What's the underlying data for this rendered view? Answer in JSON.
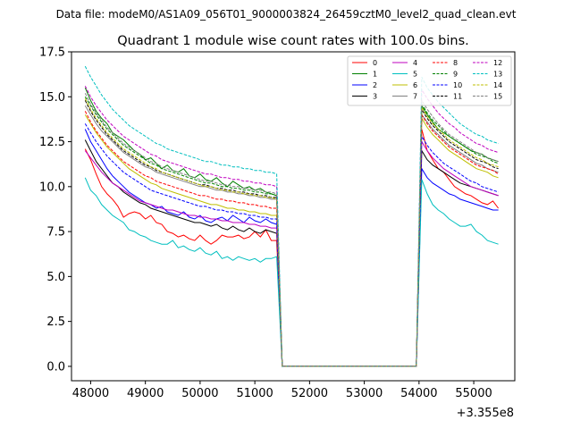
{
  "chart_data": {
    "type": "line",
    "suptitle": "Data file: modeM0/AS1A09_056T01_9000003824_26459cztM0_level2_quad_clean.evt",
    "title": "Quadrant 1 module wise count rates with 100.0s bins.",
    "xlabel": "",
    "ylabel": "",
    "x_offset_label": "+3.355e8",
    "xlim": [
      47650,
      55750
    ],
    "ylim": [
      -0.8,
      17.5
    ],
    "x_ticks": [
      48000,
      49000,
      50000,
      51000,
      52000,
      53000,
      54000,
      55000
    ],
    "x_tick_labels": [
      "48000",
      "49000",
      "50000",
      "51000",
      "52000",
      "53000",
      "54000",
      "55000"
    ],
    "y_ticks": [
      0.0,
      2.5,
      5.0,
      7.5,
      10.0,
      12.5,
      15.0,
      17.5
    ],
    "y_tick_labels": [
      "0.0",
      "2.5",
      "5.0",
      "7.5",
      "10.0",
      "12.5",
      "15.0",
      "17.5"
    ],
    "bin_width_s": 100,
    "segment1_start": 47900,
    "segment2_start": 54050,
    "gap_end": 53950,
    "zero_level": 0.0,
    "legend_position": "upper-right",
    "series": [
      {
        "name": "0",
        "color": "#ff0000",
        "dash": "solid",
        "seg1": [
          12.1,
          11.5,
          10.7,
          10.0,
          9.6,
          9.3,
          8.9,
          8.3,
          8.5,
          8.6,
          8.5,
          8.2,
          8.4,
          8.0,
          7.9,
          7.5,
          7.4,
          7.2,
          7.3,
          7.1,
          7.0,
          7.3,
          7.0,
          6.8,
          7.0,
          7.3,
          7.2,
          7.2,
          7.3,
          7.1,
          7.2,
          7.5,
          7.2,
          7.6,
          7.0,
          7.0
        ],
        "seg2": [
          13.2,
          12.0,
          11.5,
          11.0,
          10.8,
          10.4,
          10.0,
          9.8,
          9.6,
          9.5,
          9.3,
          9.1,
          9.0,
          9.2,
          8.8
        ]
      },
      {
        "name": "1",
        "color": "#008000",
        "dash": "solid",
        "seg1": [
          15.5,
          14.8,
          14.2,
          13.8,
          13.5,
          13.0,
          12.8,
          12.6,
          12.3,
          12.0,
          11.8,
          11.5,
          11.6,
          11.3,
          11.0,
          11.2,
          10.9,
          10.8,
          11.0,
          10.6,
          10.5,
          10.7,
          10.4,
          10.3,
          10.5,
          10.2,
          10.0,
          10.3,
          10.1,
          9.9,
          10.0,
          9.8,
          9.9,
          9.7,
          9.6,
          9.5
        ],
        "seg2": [
          14.5,
          14.0,
          13.6,
          13.2,
          13.0,
          12.8,
          12.6,
          12.4,
          12.2,
          12.0,
          11.9,
          11.8,
          11.6,
          11.5,
          11.4
        ]
      },
      {
        "name": "2",
        "color": "#0000ff",
        "dash": "solid",
        "seg1": [
          13.2,
          12.5,
          12.0,
          11.5,
          11.0,
          10.6,
          10.3,
          10.0,
          9.7,
          9.5,
          9.3,
          9.1,
          9.0,
          8.8,
          8.9,
          8.6,
          8.5,
          8.4,
          8.6,
          8.3,
          8.2,
          8.4,
          8.1,
          8.0,
          8.2,
          8.3,
          8.1,
          8.4,
          8.2,
          8.0,
          8.3,
          8.1,
          8.0,
          8.2,
          8.0,
          7.9
        ],
        "seg2": [
          11.0,
          10.5,
          10.2,
          10.0,
          9.8,
          9.6,
          9.5,
          9.3,
          9.2,
          9.1,
          9.0,
          8.9,
          8.8,
          8.7,
          8.7
        ]
      },
      {
        "name": "3",
        "color": "#000000",
        "dash": "solid",
        "seg1": [
          12.6,
          12.0,
          11.4,
          11.0,
          10.6,
          10.2,
          10.0,
          9.7,
          9.5,
          9.3,
          9.1,
          9.0,
          8.8,
          8.7,
          8.6,
          8.5,
          8.4,
          8.3,
          8.2,
          8.1,
          8.0,
          8.0,
          7.9,
          7.8,
          7.9,
          7.7,
          7.6,
          7.8,
          7.6,
          7.5,
          7.7,
          7.5,
          7.4,
          7.6,
          7.5,
          7.4
        ],
        "seg2": [
          12.0,
          11.5,
          11.2,
          11.0,
          10.8,
          10.6,
          10.4,
          10.2,
          10.1,
          10.0,
          9.9,
          9.8,
          9.7,
          9.6,
          9.5
        ]
      },
      {
        "name": "4",
        "color": "#bf00bf",
        "dash": "solid",
        "seg1": [
          12.0,
          11.6,
          11.2,
          10.8,
          10.5,
          10.2,
          10.0,
          9.8,
          9.6,
          9.4,
          9.2,
          9.1,
          9.0,
          8.9,
          8.8,
          8.7,
          8.7,
          8.6,
          8.5,
          8.4,
          8.4,
          8.3,
          8.3,
          8.2,
          8.2,
          8.1,
          8.1,
          8.0,
          8.0,
          8.0,
          7.9,
          7.9,
          7.8,
          7.8,
          7.7,
          7.7
        ],
        "seg2": [
          12.5,
          12.0,
          11.6,
          11.3,
          11.0,
          10.8,
          10.6,
          10.4,
          10.2,
          10.0,
          9.9,
          9.8,
          9.7,
          9.6,
          9.5
        ]
      },
      {
        "name": "5",
        "color": "#00bfbf",
        "dash": "solid",
        "seg1": [
          10.5,
          9.8,
          9.5,
          9.0,
          8.7,
          8.4,
          8.2,
          8.0,
          7.6,
          7.5,
          7.3,
          7.2,
          7.0,
          6.9,
          6.8,
          6.8,
          7.0,
          6.6,
          6.7,
          6.5,
          6.4,
          6.6,
          6.3,
          6.2,
          6.4,
          6.0,
          6.1,
          5.9,
          6.1,
          6.0,
          5.9,
          6.0,
          5.8,
          6.0,
          6.0,
          6.1
        ],
        "seg2": [
          10.4,
          9.6,
          9.0,
          8.7,
          8.5,
          8.2,
          8.0,
          7.8,
          7.8,
          7.9,
          7.5,
          7.3,
          7.0,
          6.9,
          6.8
        ]
      },
      {
        "name": "6",
        "color": "#bfbf00",
        "dash": "solid",
        "seg1": [
          14.0,
          13.5,
          13.0,
          12.6,
          12.2,
          11.9,
          11.6,
          11.3,
          11.0,
          10.8,
          10.6,
          10.4,
          10.2,
          10.1,
          9.9,
          9.8,
          9.7,
          9.6,
          9.5,
          9.4,
          9.3,
          9.2,
          9.1,
          9.0,
          9.0,
          8.9,
          8.8,
          8.8,
          8.7,
          8.7,
          8.6,
          8.6,
          8.5,
          8.5,
          8.4,
          8.4
        ],
        "seg2": [
          13.8,
          13.3,
          12.9,
          12.6,
          12.3,
          12.0,
          11.8,
          11.6,
          11.4,
          11.2,
          11.0,
          10.9,
          10.8,
          10.6,
          10.5
        ]
      },
      {
        "name": "7",
        "color": "#808080",
        "dash": "solid",
        "seg1": [
          14.5,
          14.0,
          13.5,
          13.1,
          12.8,
          12.5,
          12.2,
          11.9,
          11.7,
          11.5,
          11.3,
          11.1,
          11.0,
          10.8,
          10.7,
          10.6,
          10.5,
          10.4,
          10.3,
          10.2,
          10.1,
          10.0,
          10.0,
          9.9,
          9.8,
          9.8,
          9.7,
          9.7,
          9.6,
          9.6,
          9.5,
          9.5,
          9.4,
          9.4,
          9.3,
          9.3
        ],
        "seg2": [
          14.0,
          13.6,
          13.2,
          12.9,
          12.6,
          12.3,
          12.1,
          11.9,
          11.7,
          11.5,
          11.3,
          11.2,
          11.0,
          10.9,
          10.8
        ]
      },
      {
        "name": "8",
        "color": "#ff0000",
        "dash": "dashed",
        "seg1": [
          14.2,
          13.6,
          13.1,
          12.7,
          12.3,
          12.0,
          11.7,
          11.4,
          11.2,
          11.0,
          10.8,
          10.6,
          10.5,
          10.3,
          10.2,
          10.1,
          10.0,
          9.9,
          9.8,
          9.7,
          9.6,
          9.5,
          9.5,
          9.4,
          9.3,
          9.3,
          9.2,
          9.2,
          9.1,
          9.1,
          9.0,
          9.0,
          8.9,
          8.9,
          8.8,
          8.8
        ],
        "seg2": [
          14.0,
          13.5,
          13.1,
          12.8,
          12.5,
          12.2,
          12.0,
          11.8,
          11.6,
          11.4,
          11.2,
          11.1,
          11.0,
          10.9,
          10.7
        ]
      },
      {
        "name": "9",
        "color": "#008000",
        "dash": "dashed",
        "seg1": [
          15.0,
          14.5,
          14.0,
          13.6,
          13.2,
          12.9,
          12.6,
          12.3,
          12.1,
          11.9,
          11.7,
          11.5,
          11.3,
          11.2,
          11.0,
          10.9,
          10.8,
          10.7,
          10.6,
          10.5,
          10.4,
          10.3,
          10.2,
          10.2,
          10.1,
          10.0,
          10.0,
          9.9,
          9.9,
          9.8,
          9.8,
          9.7,
          9.7,
          9.6,
          9.6,
          9.5
        ],
        "seg2": [
          14.6,
          14.1,
          13.7,
          13.4,
          13.1,
          12.8,
          12.6,
          12.4,
          12.2,
          12.0,
          11.8,
          11.7,
          11.6,
          11.4,
          11.3
        ]
      },
      {
        "name": "10",
        "color": "#0000ff",
        "dash": "dashed",
        "seg1": [
          13.5,
          13.0,
          12.5,
          12.1,
          11.7,
          11.4,
          11.1,
          10.8,
          10.6,
          10.4,
          10.2,
          10.0,
          9.8,
          9.7,
          9.6,
          9.5,
          9.4,
          9.3,
          9.2,
          9.1,
          9.0,
          8.9,
          8.9,
          8.8,
          8.7,
          8.7,
          8.6,
          8.6,
          8.5,
          8.5,
          8.4,
          8.4,
          8.3,
          8.3,
          8.2,
          8.2
        ],
        "seg2": [
          12.8,
          12.3,
          11.9,
          11.6,
          11.3,
          11.1,
          10.9,
          10.7,
          10.5,
          10.3,
          10.2,
          10.0,
          9.9,
          9.8,
          9.7
        ]
      },
      {
        "name": "11",
        "color": "#000000",
        "dash": "dashed",
        "seg1": [
          14.8,
          14.2,
          13.7,
          13.3,
          12.9,
          12.6,
          12.3,
          12.0,
          11.8,
          11.6,
          11.4,
          11.2,
          11.1,
          10.9,
          10.8,
          10.7,
          10.6,
          10.5,
          10.4,
          10.3,
          10.2,
          10.1,
          10.1,
          10.0,
          9.9,
          9.9,
          9.8,
          9.8,
          9.7,
          9.7,
          9.6,
          9.6,
          9.5,
          9.5,
          9.4,
          9.4
        ],
        "seg2": [
          14.3,
          13.8,
          13.4,
          13.1,
          12.8,
          12.5,
          12.3,
          12.1,
          11.9,
          11.7,
          11.5,
          11.4,
          11.3,
          11.1,
          11.0
        ]
      },
      {
        "name": "12",
        "color": "#bf00bf",
        "dash": "dashed",
        "seg1": [
          15.6,
          15.0,
          14.5,
          14.1,
          13.7,
          13.4,
          13.1,
          12.8,
          12.6,
          12.4,
          12.2,
          12.0,
          11.8,
          11.7,
          11.5,
          11.4,
          11.3,
          11.2,
          11.1,
          11.0,
          10.9,
          10.8,
          10.7,
          10.7,
          10.6,
          10.5,
          10.5,
          10.4,
          10.4,
          10.3,
          10.3,
          10.2,
          10.2,
          10.1,
          10.1,
          10.0
        ],
        "seg2": [
          15.4,
          14.9,
          14.5,
          14.1,
          13.8,
          13.5,
          13.3,
          13.0,
          12.8,
          12.6,
          12.4,
          12.3,
          12.1,
          12.0,
          11.9
        ]
      },
      {
        "name": "13",
        "color": "#00bfbf",
        "dash": "dashed",
        "seg1": [
          16.7,
          16.1,
          15.6,
          15.1,
          14.7,
          14.3,
          14.0,
          13.7,
          13.4,
          13.2,
          13.0,
          12.8,
          12.6,
          12.4,
          12.3,
          12.1,
          12.0,
          11.9,
          11.8,
          11.7,
          11.6,
          11.5,
          11.4,
          11.4,
          11.3,
          11.2,
          11.2,
          11.1,
          11.1,
          11.0,
          11.0,
          10.9,
          10.9,
          10.8,
          10.8,
          10.7
        ],
        "seg2": [
          16.1,
          15.5,
          15.1,
          14.7,
          14.4,
          14.1,
          13.8,
          13.5,
          13.3,
          13.1,
          12.9,
          12.8,
          12.6,
          12.5,
          12.4
        ]
      },
      {
        "name": "14",
        "color": "#bfbf00",
        "dash": "dashed",
        "seg1": [
          14.9,
          14.3,
          13.8,
          13.4,
          13.0,
          12.7,
          12.4,
          12.1,
          11.9,
          11.7,
          11.5,
          11.3,
          11.1,
          11.0,
          10.8,
          10.7,
          10.6,
          10.5,
          10.4,
          10.3,
          10.2,
          10.1,
          10.0,
          10.0,
          9.9,
          9.8,
          9.8,
          9.7,
          9.7,
          9.6,
          9.6,
          9.5,
          9.5,
          9.4,
          9.4,
          9.3
        ],
        "seg2": [
          14.4,
          13.9,
          13.5,
          13.2,
          12.9,
          12.6,
          12.4,
          12.2,
          12.0,
          11.8,
          11.6,
          11.5,
          11.3,
          11.2,
          11.1
        ]
      },
      {
        "name": "15",
        "color": "#808080",
        "dash": "dashed",
        "seg1": [
          15.2,
          14.6,
          14.1,
          13.7,
          13.3,
          13.0,
          12.7,
          12.4,
          12.2,
          12.0,
          11.8,
          11.6,
          11.4,
          11.3,
          11.1,
          11.0,
          10.9,
          10.8,
          10.7,
          10.6,
          10.5,
          10.4,
          10.3,
          10.3,
          10.2,
          10.1,
          10.1,
          10.0,
          10.0,
          9.9,
          9.9,
          9.8,
          9.8,
          9.7,
          9.7,
          9.6
        ],
        "seg2": [
          14.8,
          14.3,
          13.9,
          13.5,
          13.2,
          12.9,
          12.7,
          12.5,
          12.3,
          12.1,
          11.9,
          11.8,
          11.6,
          11.5,
          11.4
        ]
      }
    ]
  }
}
